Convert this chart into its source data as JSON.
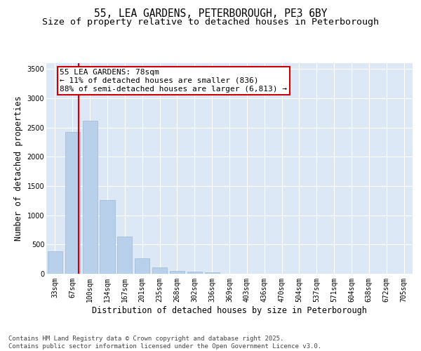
{
  "title_line1": "55, LEA GARDENS, PETERBOROUGH, PE3 6BY",
  "title_line2": "Size of property relative to detached houses in Peterborough",
  "xlabel": "Distribution of detached houses by size in Peterborough",
  "ylabel": "Number of detached properties",
  "categories": [
    "33sqm",
    "67sqm",
    "100sqm",
    "134sqm",
    "167sqm",
    "201sqm",
    "235sqm",
    "268sqm",
    "302sqm",
    "336sqm",
    "369sqm",
    "403sqm",
    "436sqm",
    "470sqm",
    "504sqm",
    "537sqm",
    "571sqm",
    "604sqm",
    "638sqm",
    "672sqm",
    "705sqm"
  ],
  "values": [
    390,
    2420,
    2620,
    1260,
    640,
    270,
    105,
    50,
    38,
    20,
    5,
    2,
    0,
    0,
    0,
    0,
    0,
    0,
    0,
    0,
    0
  ],
  "bar_color": "#b8d0ea",
  "bar_edge_color": "#9ab8d8",
  "vline_color": "#cc0000",
  "annotation_title": "55 LEA GARDENS: 78sqm",
  "annotation_line2": "← 11% of detached houses are smaller (836)",
  "annotation_line3": "88% of semi-detached houses are larger (6,813) →",
  "annotation_box_color": "#cc0000",
  "ylim": [
    0,
    3600
  ],
  "yticks": [
    0,
    500,
    1000,
    1500,
    2000,
    2500,
    3000,
    3500
  ],
  "background_color": "#dce8f5",
  "footer_line1": "Contains HM Land Registry data © Crown copyright and database right 2025.",
  "footer_line2": "Contains public sector information licensed under the Open Government Licence v3.0.",
  "title_fontsize": 10.5,
  "subtitle_fontsize": 9.5,
  "axis_label_fontsize": 8.5,
  "tick_fontsize": 7,
  "annotation_fontsize": 8,
  "footer_fontsize": 6.5
}
